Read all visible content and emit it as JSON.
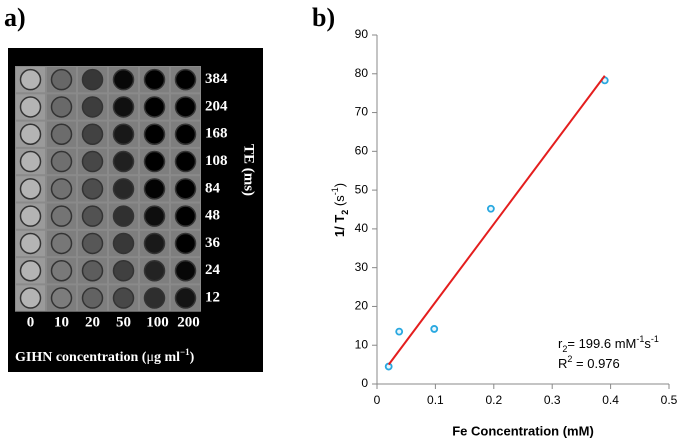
{
  "panel_a": {
    "label": "a)",
    "te_values": [
      "384",
      "204",
      "168",
      "108",
      "84",
      "48",
      "36",
      "24",
      "12"
    ],
    "te_label": "TE (ms)",
    "concentrations": [
      "0",
      "10",
      "20",
      "50",
      "100",
      "200"
    ],
    "x_label_parts": [
      "GIHN concentration (",
      "μ",
      "g ml",
      "−1",
      ")"
    ]
  },
  "chart_data": {
    "type": "scatter",
    "label": "b)",
    "x_label": "Fe Concentration (mM)",
    "y_label_parts": [
      "1/ T",
      "2",
      " (s",
      "-1",
      ")"
    ],
    "annotations": [
      [
        "r",
        "2",
        "= 199.6 mM",
        "-1",
        "s",
        "-1"
      ],
      [
        "R",
        "2",
        " = 0.976"
      ]
    ],
    "series": [
      {
        "mode": "markers",
        "color": "#29a8e0",
        "x": [
          0.02,
          0.038,
          0.098,
          0.195,
          0.39
        ],
        "values": [
          4.5,
          13.5,
          14.2,
          45.2,
          78.3
        ]
      },
      {
        "mode": "line",
        "color": "#e41e1e",
        "x": [
          0.02,
          0.39
        ],
        "values": [
          5,
          79.5
        ]
      }
    ],
    "xlim": [
      0,
      0.5
    ],
    "xticks": [
      0,
      0.1,
      0.2,
      0.3,
      0.4,
      0.5
    ],
    "ylim": [
      0,
      90
    ],
    "yticks": [
      0,
      10,
      20,
      30,
      40,
      50,
      60,
      70,
      80,
      90
    ]
  }
}
